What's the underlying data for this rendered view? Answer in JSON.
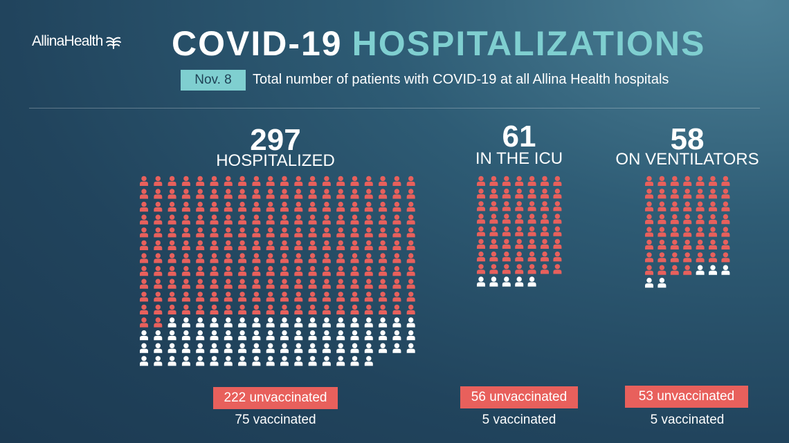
{
  "brand": {
    "logo_text": "AllinaHealth"
  },
  "header": {
    "title_part1": "COVID-19",
    "title_part2": "HOSPITALIZATIONS",
    "date_badge": "Nov. 8",
    "subtitle": "Total number of patients with COVID-19 at all Allina Health hospitals"
  },
  "colors": {
    "unvaccinated": "#e8605c",
    "vaccinated": "#ffffff",
    "accent": "#7fcfd0"
  },
  "icon": "person-icon",
  "chart_data": [
    {
      "type": "pictogram",
      "id": "hospitalized",
      "total": "297",
      "label": "HOSPITALIZED",
      "columns": 20,
      "series": [
        {
          "name": "unvaccinated",
          "value": 222,
          "label": "222 unvaccinated"
        },
        {
          "name": "vaccinated",
          "value": 75,
          "label": "75 vaccinated"
        }
      ]
    },
    {
      "type": "pictogram",
      "id": "icu",
      "total": "61",
      "label": "IN THE ICU",
      "columns": 7,
      "series": [
        {
          "name": "unvaccinated",
          "value": 56,
          "label": "56 unvaccinated"
        },
        {
          "name": "vaccinated",
          "value": 5,
          "label": "5 vaccinated"
        }
      ]
    },
    {
      "type": "pictogram",
      "id": "ventilators",
      "total": "58",
      "label": "ON VENTILATORS",
      "columns": 7,
      "series": [
        {
          "name": "unvaccinated",
          "value": 53,
          "label": "53 unvaccinated"
        },
        {
          "name": "vaccinated",
          "value": 5,
          "label": "5 vaccinated"
        }
      ]
    }
  ]
}
